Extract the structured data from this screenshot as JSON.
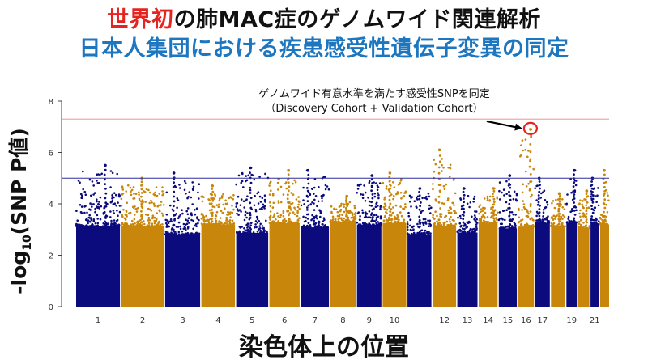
{
  "titles": {
    "line1_highlight": "世界初",
    "line1_rest": "の肺MAC症のゲノムワイド関連解析",
    "line2": "日本人集団における疾患感受性遺伝子変異の同定"
  },
  "colors": {
    "series_odd": "#0b0b7e",
    "series_even": "#c8860a",
    "title_highlight": "#e5231f",
    "title_blue": "#1d76c0",
    "genome_wide_line": "#f4a6a6",
    "suggestive_line": "#2f2fa0",
    "marker_circle": "#e5231f"
  },
  "chart_data": {
    "type": "scatter",
    "subtype": "manhattan",
    "xlabel": "染色体上の位置",
    "ylabel_prefix": "-log",
    "ylabel_sub": "10",
    "ylabel_suffix": "(SNP P値)",
    "ylim": [
      0,
      8
    ],
    "yticks": [
      0,
      2,
      4,
      6,
      8
    ],
    "xtick_labels": [
      "1",
      "2",
      "3",
      "4",
      "5",
      "6",
      "7",
      "8",
      "9",
      "10",
      "12",
      "13",
      "14",
      "15",
      "16",
      "17",
      "19",
      "21"
    ],
    "chromosomes": [
      {
        "chr": 1,
        "peak": 5.5
      },
      {
        "chr": 2,
        "peak": 5.0
      },
      {
        "chr": 3,
        "peak": 5.2
      },
      {
        "chr": 4,
        "peak": 4.7
      },
      {
        "chr": 5,
        "peak": 5.4
      },
      {
        "chr": 6,
        "peak": 5.3
      },
      {
        "chr": 7,
        "peak": 5.3
      },
      {
        "chr": 8,
        "peak": 4.3
      },
      {
        "chr": 9,
        "peak": 5.1
      },
      {
        "chr": 10,
        "peak": 5.2
      },
      {
        "chr": 11,
        "peak": 4.6
      },
      {
        "chr": 12,
        "peak": 6.1
      },
      {
        "chr": 13,
        "peak": 4.6
      },
      {
        "chr": 14,
        "peak": 4.6
      },
      {
        "chr": 15,
        "peak": 5.1
      },
      {
        "chr": 16,
        "peak": 6.9
      },
      {
        "chr": 17,
        "peak": 5.0
      },
      {
        "chr": 18,
        "peak": 4.4
      },
      {
        "chr": 19,
        "peak": 5.3
      },
      {
        "chr": 20,
        "peak": 4.5
      },
      {
        "chr": 21,
        "peak": 5.0
      },
      {
        "chr": 22,
        "peak": 5.3
      }
    ],
    "thresholds": {
      "genome_wide": 7.3,
      "suggestive": 5.0
    },
    "annotation": {
      "line1": "ゲノムワイド有意水準を満たす感受性SNPを同定",
      "line2": "（Discovery Cohort + Validation Cohort）",
      "target_chr": 16,
      "target_value": 6.9
    }
  }
}
